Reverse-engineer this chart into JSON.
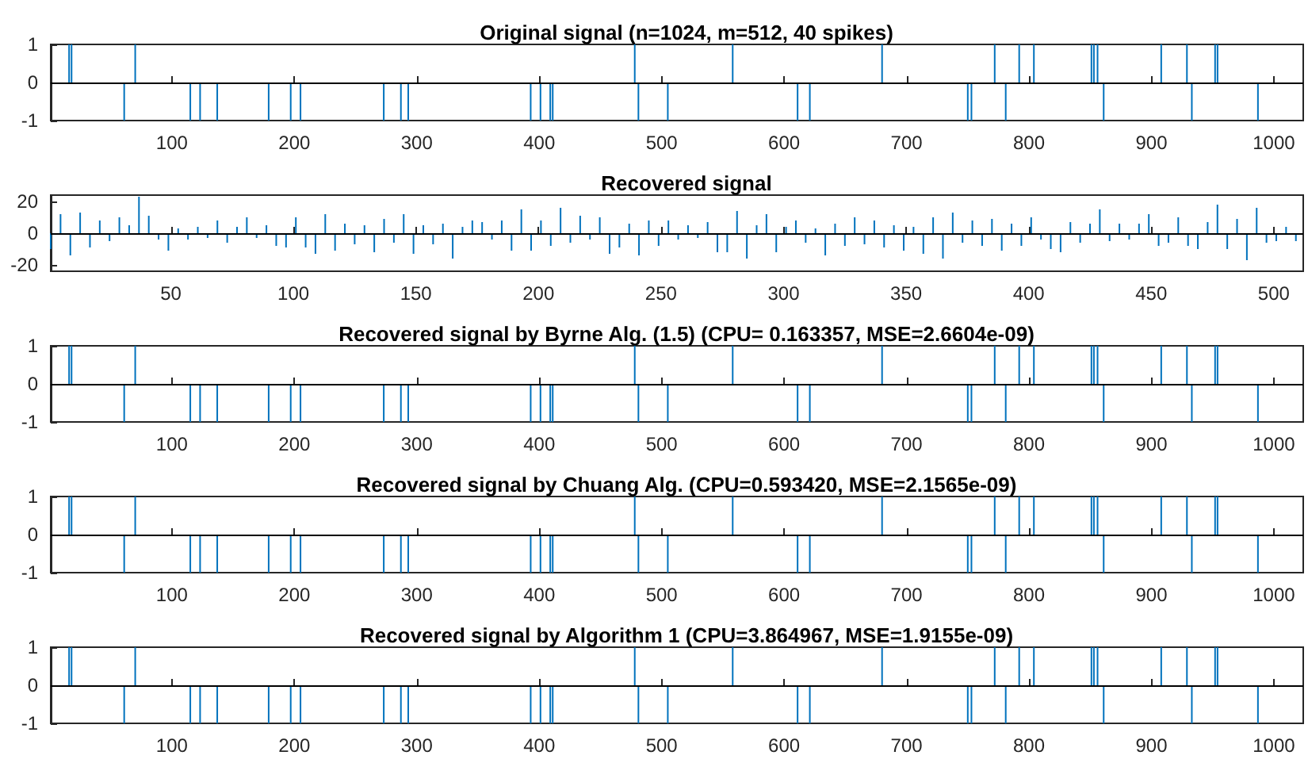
{
  "chart_data": [
    {
      "type": "bar",
      "title": "Original signal (n=1024, m=512, 40 spikes)",
      "color": "#0072bd",
      "x": [
        16,
        18,
        61,
        70,
        115,
        123,
        137,
        179,
        197,
        205,
        273,
        287,
        293,
        393,
        401,
        409,
        411,
        478,
        481,
        505,
        558,
        611,
        621,
        680,
        750,
        753,
        772,
        781,
        792,
        804,
        851,
        853,
        856,
        861,
        908,
        929,
        933,
        952,
        954,
        987
      ],
      "values": [
        1,
        1,
        -1,
        1,
        -1,
        -1,
        -1,
        -1,
        -1,
        -1,
        -1,
        -1,
        -1,
        -1,
        -1,
        -1,
        -1,
        1,
        -1,
        -1,
        1,
        -1,
        -1,
        1,
        -1,
        -1,
        1,
        -1,
        1,
        1,
        1,
        1,
        1,
        -1,
        1,
        1,
        -1,
        1,
        1,
        -1
      ],
      "xlim": [
        1,
        1024
      ],
      "xticks": [
        100,
        200,
        300,
        400,
        500,
        600,
        700,
        800,
        900,
        1000
      ],
      "ylim": [
        -1,
        1
      ],
      "yticks": [
        -1,
        0,
        1
      ],
      "grid": false,
      "ref_lines": [
        {
          "axis": "y",
          "value": 0
        }
      ]
    },
    {
      "type": "bar",
      "title": "Recovered signal",
      "color": "#0072bd",
      "x": [
        1,
        5,
        9,
        13,
        17,
        21,
        25,
        29,
        33,
        37,
        41,
        45,
        49,
        53,
        57,
        61,
        65,
        69,
        73,
        77,
        81,
        85,
        89,
        93,
        97,
        101,
        105,
        109,
        113,
        117,
        121,
        125,
        129,
        133,
        137,
        141,
        145,
        149,
        153,
        157,
        161,
        165,
        169,
        173,
        177,
        181,
        185,
        189,
        193,
        197,
        201,
        205,
        209,
        213,
        217,
        221,
        225,
        229,
        233,
        237,
        241,
        245,
        249,
        253,
        257,
        261,
        265,
        269,
        273,
        277,
        281,
        285,
        289,
        293,
        297,
        301,
        305,
        309,
        313,
        317,
        321,
        325,
        329,
        333,
        337,
        341,
        345,
        349,
        353,
        357,
        361,
        365,
        369,
        373,
        377,
        381,
        385,
        389,
        393,
        397,
        401,
        405,
        409,
        413,
        417,
        421,
        425,
        429,
        433,
        437,
        441,
        445,
        449,
        453,
        457,
        461,
        465,
        469,
        473,
        477,
        481,
        485,
        489,
        493,
        497,
        501,
        505,
        509
      ],
      "values": [
        -10,
        12,
        -14,
        13,
        -9,
        8,
        -5,
        10,
        5,
        23,
        11,
        -4,
        -11,
        3,
        -4,
        4,
        -3,
        8,
        -6,
        4,
        10,
        -3,
        5,
        -8,
        -9,
        10,
        -9,
        -13,
        12,
        -11,
        6,
        -7,
        5,
        -12,
        9,
        -6,
        12,
        -13,
        5,
        -7,
        6,
        -16,
        4,
        8,
        7,
        -4,
        8,
        -11,
        15,
        -11,
        8,
        -8,
        16,
        -6,
        11,
        -4,
        10,
        -13,
        -9,
        6,
        -14,
        8,
        -8,
        8,
        -4,
        5,
        -3,
        7,
        -12,
        -12,
        14,
        -16,
        5,
        12,
        -12,
        4,
        8,
        -6,
        3,
        -14,
        6,
        -8,
        10,
        -7,
        8,
        -9,
        5,
        -11,
        4,
        -13,
        10,
        -16,
        13,
        -6,
        8,
        -8,
        9,
        -11,
        6,
        -8,
        10,
        -4,
        -10,
        -12,
        7,
        -6,
        6,
        15,
        -5,
        6,
        -4,
        6,
        12,
        -8,
        -6,
        10,
        -8,
        -10,
        7,
        18,
        -10,
        9,
        -17,
        16,
        -6,
        -5,
        4,
        -5
      ],
      "xlim": [
        1,
        512
      ],
      "xticks": [
        50,
        100,
        150,
        200,
        250,
        300,
        350,
        400,
        450,
        500
      ],
      "ylim": [
        -24,
        24
      ],
      "yticks": [
        -20,
        0,
        20
      ],
      "grid": false,
      "ref_lines": [
        {
          "axis": "y",
          "value": 0
        }
      ]
    },
    {
      "type": "bar",
      "title": "Recovered signal by Byrne Alg. (1.5) (CPU= 0.163357, MSE=2.6604e-09)",
      "color": "#0072bd",
      "x": [
        16,
        18,
        61,
        70,
        115,
        123,
        137,
        179,
        197,
        205,
        273,
        287,
        293,
        393,
        401,
        409,
        411,
        478,
        481,
        505,
        558,
        611,
        621,
        680,
        750,
        753,
        772,
        781,
        792,
        804,
        851,
        853,
        856,
        861,
        908,
        929,
        933,
        952,
        954,
        987
      ],
      "values": [
        1,
        1,
        -1,
        1,
        -1,
        -1,
        -1,
        -1,
        -1,
        -1,
        -1,
        -1,
        -1,
        -1,
        -1,
        -1,
        -1,
        1,
        -1,
        -1,
        1,
        -1,
        -1,
        1,
        -1,
        -1,
        1,
        -1,
        1,
        1,
        1,
        1,
        1,
        -1,
        1,
        1,
        -1,
        1,
        1,
        -1
      ],
      "xlim": [
        1,
        1024
      ],
      "xticks": [
        100,
        200,
        300,
        400,
        500,
        600,
        700,
        800,
        900,
        1000
      ],
      "ylim": [
        -1,
        1
      ],
      "yticks": [
        -1,
        0,
        1
      ],
      "grid": false,
      "ref_lines": [
        {
          "axis": "y",
          "value": 0
        }
      ]
    },
    {
      "type": "bar",
      "title": "Recovered signal by Chuang Alg. (CPU=0.593420, MSE=2.1565e-09)",
      "color": "#0072bd",
      "x": [
        16,
        18,
        61,
        70,
        115,
        123,
        137,
        179,
        197,
        205,
        273,
        287,
        293,
        393,
        401,
        409,
        411,
        478,
        481,
        505,
        558,
        611,
        621,
        680,
        750,
        753,
        772,
        781,
        792,
        804,
        851,
        853,
        856,
        861,
        908,
        929,
        933,
        952,
        954,
        987
      ],
      "values": [
        1,
        1,
        -1,
        1,
        -1,
        -1,
        -1,
        -1,
        -1,
        -1,
        -1,
        -1,
        -1,
        -1,
        -1,
        -1,
        -1,
        1,
        -1,
        -1,
        1,
        -1,
        -1,
        1,
        -1,
        -1,
        1,
        -1,
        1,
        1,
        1,
        1,
        1,
        -1,
        1,
        1,
        -1,
        1,
        1,
        -1
      ],
      "xlim": [
        1,
        1024
      ],
      "xticks": [
        100,
        200,
        300,
        400,
        500,
        600,
        700,
        800,
        900,
        1000
      ],
      "ylim": [
        -1,
        1
      ],
      "yticks": [
        -1,
        0,
        1
      ],
      "grid": false,
      "ref_lines": [
        {
          "axis": "y",
          "value": 0
        }
      ]
    },
    {
      "type": "bar",
      "title": "Recovered signal by Algorithm 1 (CPU=3.864967, MSE=1.9155e-09)",
      "color": "#0072bd",
      "x": [
        16,
        18,
        61,
        70,
        115,
        123,
        137,
        179,
        197,
        205,
        273,
        287,
        293,
        393,
        401,
        409,
        411,
        478,
        481,
        505,
        558,
        611,
        621,
        680,
        750,
        753,
        772,
        781,
        792,
        804,
        851,
        853,
        856,
        861,
        908,
        929,
        933,
        952,
        954,
        987
      ],
      "values": [
        1,
        1,
        -1,
        1,
        -1,
        -1,
        -1,
        -1,
        -1,
        -1,
        -1,
        -1,
        -1,
        -1,
        -1,
        -1,
        -1,
        1,
        -1,
        -1,
        1,
        -1,
        -1,
        1,
        -1,
        -1,
        1,
        -1,
        1,
        1,
        1,
        1,
        1,
        -1,
        1,
        1,
        -1,
        1,
        1,
        -1
      ],
      "xlim": [
        1,
        1024
      ],
      "xticks": [
        100,
        200,
        300,
        400,
        500,
        600,
        700,
        800,
        900,
        1000
      ],
      "ylim": [
        -1,
        1
      ],
      "yticks": [
        -1,
        0,
        1
      ],
      "grid": false,
      "ref_lines": [
        {
          "axis": "y",
          "value": 0
        }
      ]
    }
  ]
}
